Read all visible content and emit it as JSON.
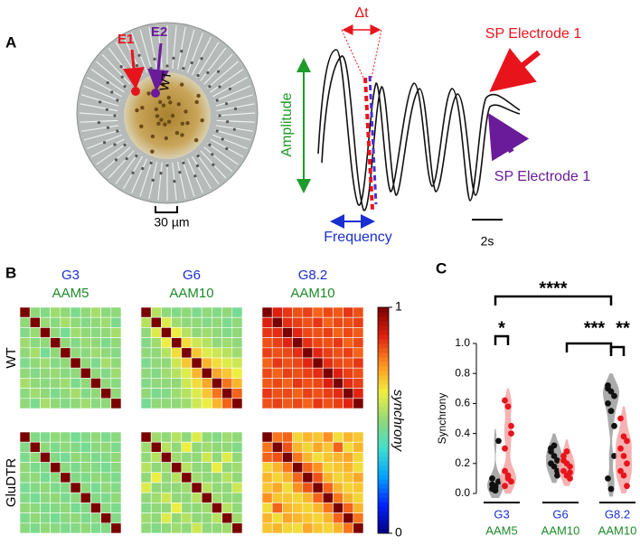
{
  "panel_a": {
    "label": "A",
    "electrode_1": "E1",
    "electrode_2": "E2",
    "genotype": "WT",
    "scale_bar": "30 µm",
    "amplitude": "Amplitude",
    "delta": "Δt",
    "sp_red": "SP Electrode 1",
    "sp_purple": "SP Electrode 1",
    "frequency": "Frequency",
    "time_scale": "2s"
  },
  "panel_b": {
    "label": "B",
    "columns": [
      {
        "line1": "G3",
        "line2": "AAM5"
      },
      {
        "line1": "G6",
        "line2": "AAM10"
      },
      {
        "line1": "G8.2",
        "line2": "AAM10"
      }
    ],
    "rows": [
      "WT",
      "GluDTR"
    ],
    "colorbar_label": "synchrony",
    "colorbar_lim": [
      0,
      1
    ],
    "colorbar_ticks": [
      0,
      1
    ],
    "colormap": [
      "#00007f",
      "#0020ff",
      "#00a0ff",
      "#40e0d0",
      "#90d878",
      "#f0f040",
      "#ff9020",
      "#e02010",
      "#7a0000"
    ],
    "matrices": [
      [
        [
          [
            1,
            0.5,
            0.48,
            0.52,
            0.5,
            0.47,
            0.5,
            0.53,
            0.49,
            0.5
          ],
          [
            0.5,
            1,
            0.51,
            0.49,
            0.53,
            0.5,
            0.48,
            0.5,
            0.52,
            0.47
          ],
          [
            0.48,
            0.51,
            1,
            0.5,
            0.46,
            0.52,
            0.5,
            0.49,
            0.5,
            0.53
          ],
          [
            0.52,
            0.49,
            0.5,
            1,
            0.5,
            0.48,
            0.51,
            0.5,
            0.47,
            0.5
          ],
          [
            0.5,
            0.53,
            0.46,
            0.5,
            1,
            0.5,
            0.49,
            0.52,
            0.5,
            0.48
          ],
          [
            0.47,
            0.5,
            0.52,
            0.48,
            0.5,
            1,
            0.5,
            0.47,
            0.53,
            0.5
          ],
          [
            0.5,
            0.48,
            0.5,
            0.51,
            0.49,
            0.5,
            1,
            0.5,
            0.48,
            0.52
          ],
          [
            0.53,
            0.5,
            0.49,
            0.5,
            0.52,
            0.47,
            0.5,
            1,
            0.5,
            0.49
          ],
          [
            0.49,
            0.52,
            0.5,
            0.47,
            0.5,
            0.53,
            0.48,
            0.5,
            1,
            0.5
          ],
          [
            0.5,
            0.47,
            0.53,
            0.5,
            0.48,
            0.5,
            0.52,
            0.49,
            0.5,
            1
          ]
        ],
        [
          [
            1,
            0.55,
            0.5,
            0.48,
            0.5,
            0.47,
            0.5,
            0.48,
            0.5,
            0.46
          ],
          [
            0.55,
            1,
            0.6,
            0.52,
            0.5,
            0.5,
            0.48,
            0.5,
            0.47,
            0.5
          ],
          [
            0.5,
            0.6,
            1,
            0.62,
            0.55,
            0.5,
            0.52,
            0.5,
            0.48,
            0.5
          ],
          [
            0.48,
            0.52,
            0.62,
            1,
            0.65,
            0.58,
            0.55,
            0.5,
            0.52,
            0.5
          ],
          [
            0.5,
            0.5,
            0.55,
            0.65,
            1,
            0.68,
            0.6,
            0.58,
            0.55,
            0.52
          ],
          [
            0.47,
            0.5,
            0.5,
            0.58,
            0.68,
            1,
            0.7,
            0.65,
            0.6,
            0.58
          ],
          [
            0.5,
            0.48,
            0.52,
            0.55,
            0.6,
            0.7,
            1,
            0.72,
            0.68,
            0.62
          ],
          [
            0.48,
            0.5,
            0.5,
            0.5,
            0.58,
            0.65,
            0.72,
            1,
            0.78,
            0.7
          ],
          [
            0.5,
            0.47,
            0.48,
            0.52,
            0.55,
            0.6,
            0.68,
            0.78,
            1,
            0.8
          ],
          [
            0.46,
            0.5,
            0.5,
            0.5,
            0.52,
            0.58,
            0.62,
            0.7,
            0.8,
            1
          ]
        ],
        [
          [
            1,
            0.88,
            0.85,
            0.82,
            0.84,
            0.8,
            0.83,
            0.81,
            0.85,
            0.82
          ],
          [
            0.88,
            1,
            0.86,
            0.84,
            0.82,
            0.85,
            0.8,
            0.83,
            0.82,
            0.84
          ],
          [
            0.85,
            0.86,
            1,
            0.87,
            0.83,
            0.82,
            0.84,
            0.8,
            0.83,
            0.81
          ],
          [
            0.82,
            0.84,
            0.87,
            1,
            0.86,
            0.83,
            0.82,
            0.85,
            0.8,
            0.83
          ],
          [
            0.84,
            0.82,
            0.83,
            0.86,
            1,
            0.87,
            0.84,
            0.82,
            0.84,
            0.8
          ],
          [
            0.8,
            0.85,
            0.82,
            0.83,
            0.87,
            1,
            0.86,
            0.83,
            0.82,
            0.85
          ],
          [
            0.83,
            0.8,
            0.84,
            0.82,
            0.84,
            0.86,
            1,
            0.88,
            0.84,
            0.82
          ],
          [
            0.81,
            0.83,
            0.8,
            0.85,
            0.82,
            0.83,
            0.88,
            1,
            0.86,
            0.84
          ],
          [
            0.85,
            0.82,
            0.83,
            0.8,
            0.84,
            0.82,
            0.84,
            0.86,
            1,
            0.87
          ],
          [
            0.82,
            0.84,
            0.81,
            0.83,
            0.8,
            0.85,
            0.82,
            0.84,
            0.87,
            1
          ]
        ]
      ],
      [
        [
          [
            1,
            0.48,
            0.47,
            0.5,
            0.49,
            0.46,
            0.48,
            0.5,
            0.47,
            0.49
          ],
          [
            0.48,
            1,
            0.5,
            0.47,
            0.5,
            0.48,
            0.46,
            0.49,
            0.5,
            0.47
          ],
          [
            0.47,
            0.5,
            1,
            0.48,
            0.46,
            0.5,
            0.49,
            0.47,
            0.48,
            0.5
          ],
          [
            0.5,
            0.47,
            0.48,
            1,
            0.49,
            0.47,
            0.5,
            0.48,
            0.46,
            0.49
          ],
          [
            0.49,
            0.5,
            0.46,
            0.49,
            1,
            0.48,
            0.47,
            0.5,
            0.49,
            0.47
          ],
          [
            0.46,
            0.48,
            0.5,
            0.47,
            0.48,
            1,
            0.49,
            0.46,
            0.5,
            0.48
          ],
          [
            0.48,
            0.46,
            0.49,
            0.5,
            0.47,
            0.49,
            1,
            0.48,
            0.47,
            0.5
          ],
          [
            0.5,
            0.49,
            0.47,
            0.48,
            0.5,
            0.46,
            0.48,
            1,
            0.49,
            0.47
          ],
          [
            0.47,
            0.5,
            0.48,
            0.46,
            0.49,
            0.5,
            0.47,
            0.49,
            1,
            0.48
          ],
          [
            0.49,
            0.47,
            0.5,
            0.49,
            0.47,
            0.48,
            0.5,
            0.47,
            0.48,
            1
          ]
        ],
        [
          [
            1,
            0.52,
            0.5,
            0.55,
            0.5,
            0.6,
            0.5,
            0.48,
            0.52,
            0.5
          ],
          [
            0.52,
            1,
            0.55,
            0.5,
            0.62,
            0.5,
            0.52,
            0.5,
            0.5,
            0.48
          ],
          [
            0.5,
            0.55,
            1,
            0.52,
            0.5,
            0.5,
            0.58,
            0.5,
            0.6,
            0.5
          ],
          [
            0.55,
            0.5,
            0.52,
            1,
            0.55,
            0.5,
            0.5,
            0.62,
            0.5,
            0.52
          ],
          [
            0.5,
            0.62,
            0.5,
            0.55,
            1,
            0.52,
            0.5,
            0.5,
            0.55,
            0.5
          ],
          [
            0.6,
            0.5,
            0.5,
            0.5,
            0.52,
            1,
            0.55,
            0.5,
            0.5,
            0.58
          ],
          [
            0.5,
            0.52,
            0.58,
            0.5,
            0.5,
            0.55,
            1,
            0.52,
            0.5,
            0.5
          ],
          [
            0.48,
            0.5,
            0.5,
            0.62,
            0.5,
            0.5,
            0.52,
            1,
            0.55,
            0.5
          ],
          [
            0.52,
            0.5,
            0.6,
            0.5,
            0.55,
            0.5,
            0.5,
            0.55,
            1,
            0.52
          ],
          [
            0.5,
            0.48,
            0.5,
            0.52,
            0.5,
            0.58,
            0.5,
            0.5,
            0.52,
            1
          ]
        ],
        [
          [
            1,
            0.78,
            0.8,
            0.66,
            0.7,
            0.68,
            0.75,
            0.65,
            0.7,
            0.68
          ],
          [
            0.78,
            1,
            0.82,
            0.7,
            0.66,
            0.72,
            0.68,
            0.8,
            0.65,
            0.7
          ],
          [
            0.8,
            0.82,
            1,
            0.78,
            0.7,
            0.65,
            0.68,
            0.7,
            0.72,
            0.66
          ],
          [
            0.66,
            0.7,
            0.78,
            1,
            0.8,
            0.75,
            0.66,
            0.68,
            0.7,
            0.65
          ],
          [
            0.7,
            0.66,
            0.7,
            0.8,
            1,
            0.82,
            0.7,
            0.66,
            0.68,
            0.72
          ],
          [
            0.68,
            0.72,
            0.65,
            0.75,
            0.82,
            1,
            0.8,
            0.7,
            0.66,
            0.68
          ],
          [
            0.75,
            0.68,
            0.68,
            0.66,
            0.7,
            0.8,
            1,
            0.78,
            0.7,
            0.66
          ],
          [
            0.65,
            0.8,
            0.7,
            0.68,
            0.66,
            0.7,
            0.78,
            1,
            0.8,
            0.7
          ],
          [
            0.7,
            0.65,
            0.72,
            0.7,
            0.68,
            0.66,
            0.7,
            0.8,
            1,
            0.78
          ],
          [
            0.68,
            0.7,
            0.66,
            0.65,
            0.72,
            0.68,
            0.66,
            0.7,
            0.78,
            1
          ]
        ]
      ]
    ]
  },
  "chart_data": {
    "type": "violin-strip",
    "label": "C",
    "ylabel": "Synchrony",
    "ylim": [
      0,
      1
    ],
    "yticks": [
      {
        "value": 0,
        "label": "0.0"
      },
      0.2,
      0.4,
      0.6,
      0.8,
      {
        "value": 1,
        "label": "1.0"
      }
    ],
    "categories": [
      "G3",
      "G6",
      "G8.2"
    ],
    "category_sublabels": [
      "AAM5",
      "AAM10",
      "AAM10"
    ],
    "series": [
      {
        "color": "#111111",
        "violin_color": "#9c9c9c",
        "values": [
          [
            0.03,
            0.05,
            0.08,
            0.06,
            0.04,
            0.35,
            0.1,
            0.02
          ],
          [
            0.3,
            0.25,
            0.22,
            0.2,
            0.18,
            0.12,
            0.28,
            0.32,
            0.15
          ],
          [
            0.7,
            0.68,
            0.65,
            0.6,
            0.55,
            0.45,
            0.72,
            0.03,
            0.25,
            0.1
          ]
        ]
      },
      {
        "color": "#e8141c",
        "violin_color": "#f4a4a4",
        "values": [
          [
            0.62,
            0.58,
            0.45,
            0.3,
            0.12,
            0.08,
            0.05,
            0.1,
            0.4,
            0.15
          ],
          [
            0.25,
            0.2,
            0.18,
            0.15,
            0.12,
            0.1,
            0.22,
            0.28,
            0.14
          ],
          [
            0.5,
            0.38,
            0.35,
            0.3,
            0.25,
            0.2,
            0.15,
            0.12,
            0.05
          ]
        ]
      }
    ],
    "significance": [
      "*",
      "****",
      "***",
      "**"
    ]
  }
}
